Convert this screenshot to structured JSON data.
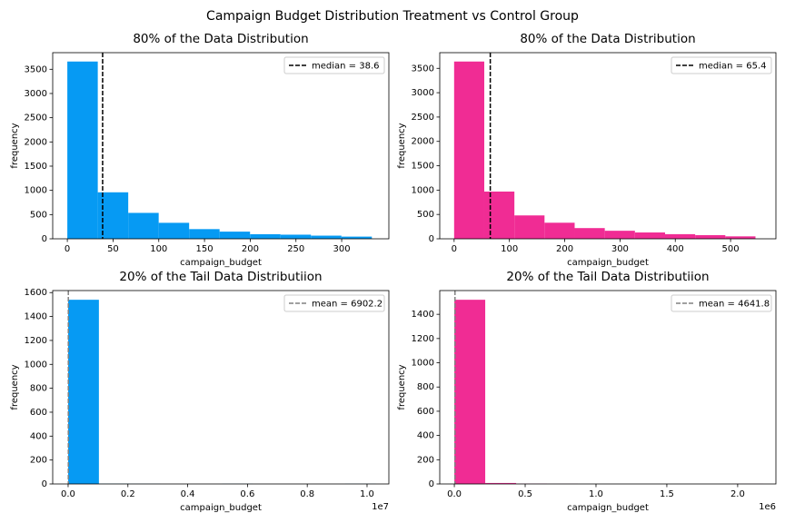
{
  "title": "Campaign Budget Distribution Treatment vs Control Group",
  "chart_data": [
    {
      "type": "histogram",
      "title": "80% of the Data Distribution",
      "xlabel": "campaign_budget",
      "ylabel": "frequency",
      "color": "#069af3",
      "bins": [
        0,
        33.3,
        66.6,
        99.9,
        133.2,
        166.5,
        199.8,
        233.1,
        266.4,
        299.7,
        333
      ],
      "values": [
        3660,
        960,
        535,
        330,
        200,
        148,
        95,
        85,
        65,
        45
      ],
      "xlim": [
        -16,
        351.6
      ],
      "ylim": [
        0,
        3843
      ],
      "xticks": [
        0,
        50,
        100,
        150,
        200,
        250,
        300
      ],
      "yticks": [
        0,
        500,
        1000,
        1500,
        2000,
        2500,
        3000,
        3500
      ],
      "vline": {
        "value": 38.6,
        "label": "median = 38.6",
        "color": "#000000"
      },
      "legend": "upper right"
    },
    {
      "type": "histogram",
      "title": "80% of the Data Distribution",
      "xlabel": "campaign_budget",
      "ylabel": "frequency",
      "color": "#f02c94",
      "bins": [
        0,
        54.5,
        109,
        163.5,
        218,
        272.5,
        327,
        381.5,
        436,
        490.5,
        545
      ],
      "values": [
        3640,
        970,
        480,
        330,
        220,
        165,
        130,
        95,
        75,
        50
      ],
      "xlim": [
        -26,
        582
      ],
      "ylim": [
        0,
        3822
      ],
      "xticks": [
        0,
        100,
        200,
        300,
        400,
        500
      ],
      "yticks": [
        0,
        500,
        1000,
        1500,
        2000,
        2500,
        3000,
        3500
      ],
      "vline": {
        "value": 65.4,
        "label": "median = 65.4",
        "color": "#000000"
      },
      "legend": "upper right"
    },
    {
      "type": "histogram",
      "title": "20% of the Tail Data Distributiion",
      "xlabel": "campaign_budget",
      "ylabel": "frequency",
      "color": "#069af3",
      "bins": [
        0,
        1030000,
        2060000,
        3090000,
        4120000,
        5150000,
        6180000,
        7210000,
        8240000,
        9270000,
        10300000
      ],
      "values": [
        1540,
        2,
        1,
        0,
        0,
        1,
        0,
        0,
        0,
        1
      ],
      "xlim": [
        -516000,
        10730000
      ],
      "ylim": [
        0,
        1617
      ],
      "xticks": [
        {
          "value": 0,
          "label": "0.0"
        },
        {
          "value": 2000000,
          "label": "0.2"
        },
        {
          "value": 4000000,
          "label": "0.4"
        },
        {
          "value": 6000000,
          "label": "0.6"
        },
        {
          "value": 8000000,
          "label": "0.8"
        },
        {
          "value": 10000000,
          "label": "1.0"
        }
      ],
      "x_offset_label": "1e7",
      "yticks": [
        0,
        200,
        400,
        600,
        800,
        1000,
        1200,
        1400,
        1600
      ],
      "vline": {
        "value": 6902.2,
        "label": "mean = 6902.2",
        "color": "#808080"
      },
      "legend": "upper right"
    },
    {
      "type": "histogram",
      "title": "20% of the Tail Data Distributiion",
      "xlabel": "campaign_budget",
      "ylabel": "frequency",
      "color": "#f02c94",
      "bins": [
        0,
        218000,
        436000,
        654000,
        872000,
        1090000,
        1308000,
        1526000,
        1744000,
        1962000,
        2180000
      ],
      "values": [
        1520,
        8,
        2,
        1,
        0,
        0,
        0,
        0,
        0,
        1
      ],
      "xlim": [
        -103000,
        2270000
      ],
      "ylim": [
        0,
        1596
      ],
      "xticks": [
        {
          "value": 0,
          "label": "0.0"
        },
        {
          "value": 500000,
          "label": "0.5"
        },
        {
          "value": 1000000,
          "label": "1.0"
        },
        {
          "value": 1500000,
          "label": "1.5"
        },
        {
          "value": 2000000,
          "label": "2.0"
        }
      ],
      "x_offset_label": "1e6",
      "yticks": [
        0,
        200,
        400,
        600,
        800,
        1000,
        1200,
        1400
      ],
      "vline": {
        "value": 4641.8,
        "label": "mean = 4641.8",
        "color": "#808080"
      },
      "legend": "upper right"
    }
  ]
}
